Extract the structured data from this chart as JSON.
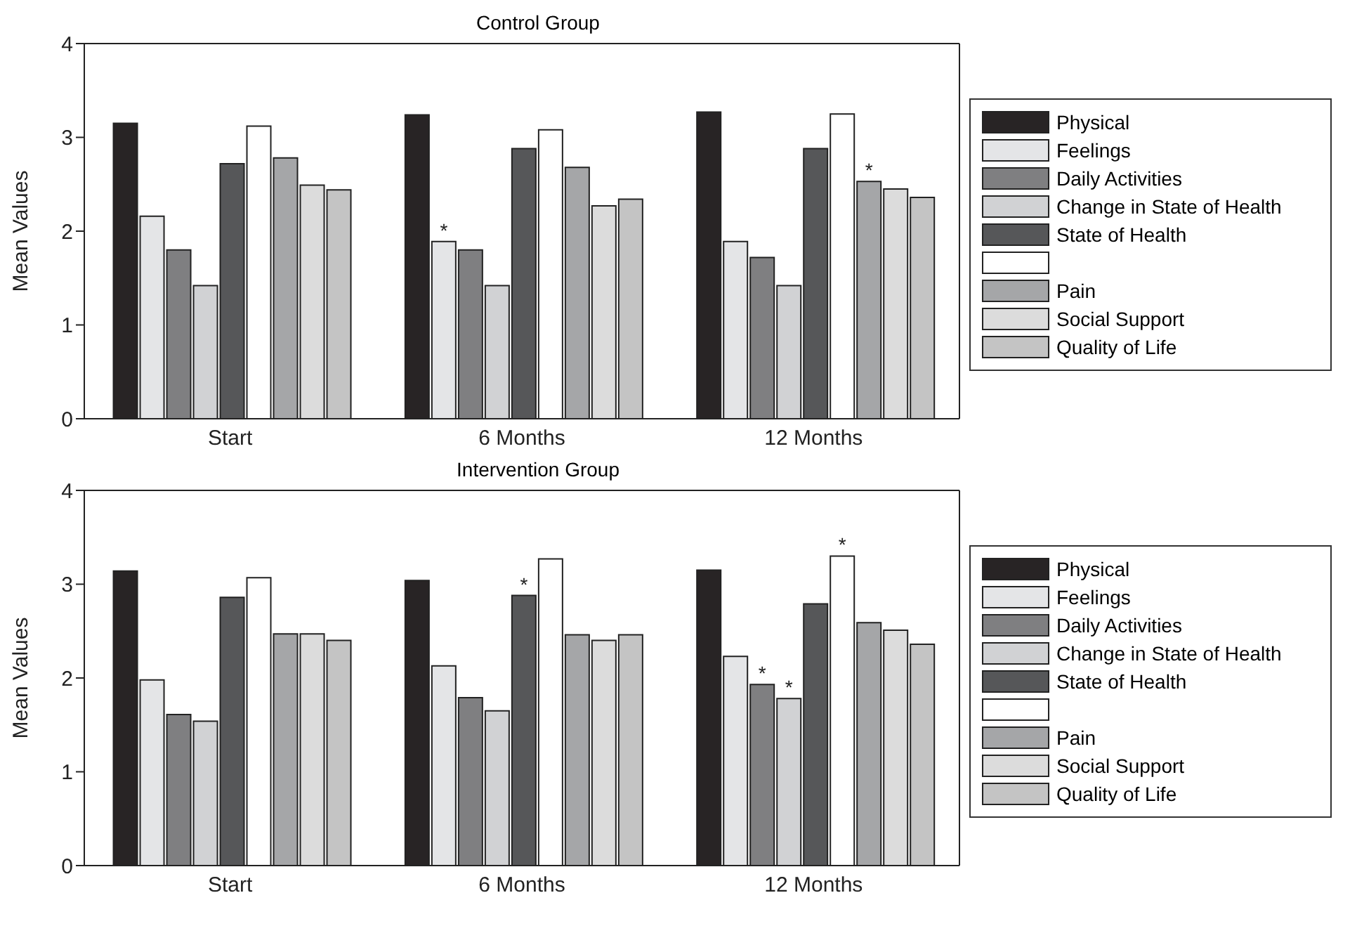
{
  "chart_data": [
    {
      "type": "bar",
      "title": "Control Group",
      "ylabel": "Mean Values",
      "categories": [
        "Start",
        "6 Months",
        "12 Months"
      ],
      "ylim": [
        0,
        4
      ],
      "yticks": [
        0,
        1,
        2,
        3,
        4
      ],
      "grid": false,
      "legend": "right",
      "series": [
        {
          "name": "Physical",
          "color": "#282425",
          "values": [
            3.15,
            3.24,
            3.27
          ]
        },
        {
          "name": "Feelings",
          "color": "#e4e5e7",
          "values": [
            2.16,
            1.89,
            1.89
          ],
          "value_labels": [
            null,
            "*",
            null
          ]
        },
        {
          "name": "Daily Activities",
          "color": "#7f7f81",
          "values": [
            1.8,
            1.8,
            1.72
          ]
        },
        {
          "name": "Change in State of Health",
          "color": "#d1d2d4",
          "values": [
            1.42,
            1.42,
            1.42
          ]
        },
        {
          "name": "State of Health",
          "color": "#565759",
          "values": [
            2.72,
            2.88,
            2.88
          ]
        },
        {
          "color": "#ffffff",
          "values": [
            3.12,
            3.08,
            3.25
          ]
        },
        {
          "name": "Pain",
          "color": "#a5a6a8",
          "values": [
            2.78,
            2.68,
            2.53
          ],
          "value_labels": [
            null,
            null,
            "*"
          ]
        },
        {
          "name": "Social Support",
          "color": "#dcdcdc",
          "values": [
            2.49,
            2.27,
            2.45
          ]
        },
        {
          "name": "Quality of Life",
          "color": "#c4c4c4",
          "values": [
            2.44,
            2.34,
            2.36
          ]
        }
      ]
    },
    {
      "type": "bar",
      "title": "Intervention Group",
      "ylabel": "Mean Values",
      "categories": [
        "Start",
        "6 Months",
        "12 Months"
      ],
      "ylim": [
        0,
        4
      ],
      "yticks": [
        0,
        1,
        2,
        3,
        4
      ],
      "grid": false,
      "legend": "right",
      "series": [
        {
          "name": "Physical",
          "color": "#282425",
          "values": [
            3.14,
            3.04,
            3.15
          ]
        },
        {
          "name": "Feelings",
          "color": "#e4e5e7",
          "values": [
            1.98,
            2.13,
            2.23
          ]
        },
        {
          "name": "Daily Activities",
          "color": "#7f7f81",
          "values": [
            1.61,
            1.79,
            1.93
          ],
          "value_labels": [
            null,
            null,
            "*"
          ]
        },
        {
          "name": "Change in State of Health",
          "color": "#d1d2d4",
          "values": [
            1.54,
            1.65,
            1.78
          ],
          "value_labels": [
            null,
            null,
            "*"
          ]
        },
        {
          "name": "State of Health",
          "color": "#565759",
          "values": [
            2.86,
            2.88,
            2.79
          ],
          "value_labels": [
            null,
            "*",
            null
          ]
        },
        {
          "color": "#ffffff",
          "values": [
            3.07,
            3.27,
            3.3
          ],
          "value_labels": [
            null,
            null,
            "*"
          ]
        },
        {
          "name": "Pain",
          "color": "#a5a6a8",
          "values": [
            2.47,
            2.46,
            2.59
          ]
        },
        {
          "name": "Social Support",
          "color": "#dcdcdc",
          "values": [
            2.47,
            2.4,
            2.51
          ]
        },
        {
          "name": "Quality of Life",
          "color": "#c4c4c4",
          "values": [
            2.4,
            2.46,
            2.36
          ]
        }
      ]
    }
  ]
}
